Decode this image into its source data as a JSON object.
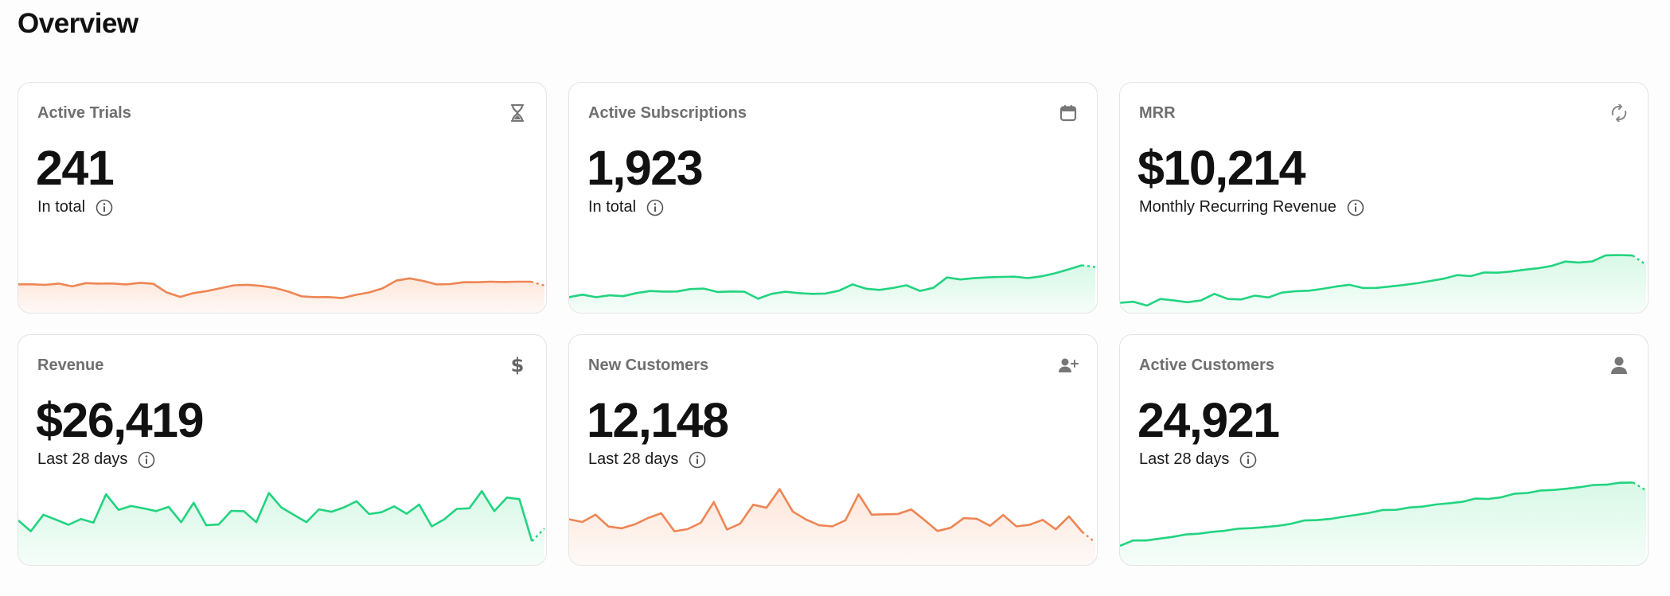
{
  "page": {
    "title": "Overview"
  },
  "colors": {
    "orange": "#ee8554",
    "green": "#22d480",
    "orange_fill": "#fde5d8",
    "green_fill": "#d6f8e6"
  },
  "cards": [
    {
      "title": "Active Trials",
      "icon": "hourglass-icon",
      "value": "241",
      "subtitle": "In total",
      "color": "orange",
      "trend": [
        26.0,
        26.0,
        25.5,
        26.6,
        24.2,
        27.0,
        26.6,
        26.7,
        25.9,
        27.3,
        26.5,
        19.0,
        15.1,
        18.4,
        20.2,
        22.7,
        25.2,
        25.6,
        24.6,
        22.9,
        19.7,
        15.6,
        14.9,
        15.0,
        14.1,
        16.8,
        19.0,
        22.5,
        29.2,
        31.2,
        29.0,
        25.9,
        26.2,
        27.8,
        27.8,
        28.3,
        28.0,
        28.3,
        28.3,
        25.0
      ]
    },
    {
      "title": "Active Subscriptions",
      "icon": "calendar-icon",
      "value": "1,923",
      "subtitle": "In total",
      "color": "green",
      "trend": [
        15.0,
        17.0,
        14.8,
        16.5,
        15.7,
        18.4,
        20.2,
        19.7,
        19.8,
        21.9,
        22.3,
        19.4,
        19.8,
        19.6,
        13.5,
        17.7,
        19.6,
        18.4,
        17.7,
        18.0,
        20.5,
        25.9,
        22.2,
        21.2,
        22.8,
        25.2,
        20.3,
        23.0,
        31.9,
        30.2,
        31.3,
        32.0,
        32.4,
        32.6,
        31.4,
        32.9,
        35.5,
        38.9,
        42.5,
        41.0
      ]
    },
    {
      "title": "MRR",
      "icon": "refresh-icon",
      "value": "$10,214",
      "subtitle": "Monthly Recurring Revenue",
      "color": "green",
      "trend": [
        10.0,
        10.9,
        7.6,
        13.3,
        12.0,
        10.5,
        12.0,
        17.7,
        13.3,
        12.9,
        16.2,
        14.6,
        18.8,
        20.0,
        20.5,
        22.1,
        24.1,
        25.6,
        22.8,
        22.9,
        24.1,
        25.4,
        26.9,
        28.9,
        30.9,
        34.0,
        33.1,
        36.3,
        36.1,
        37.1,
        38.7,
        39.9,
        42.0,
        45.7,
        44.9,
        45.8,
        51.1,
        51.4,
        51.0,
        43.0
      ]
    },
    {
      "title": "Revenue",
      "icon": "dollar-icon",
      "value": "$26,419",
      "subtitle": "Last 28 days",
      "color": "green",
      "trend": [
        40.0,
        30.6,
        44.9,
        40.6,
        36.2,
        41.2,
        38.1,
        62.7,
        49.2,
        52.5,
        50.4,
        48.1,
        51.7,
        38.4,
        55.3,
        35.8,
        36.5,
        48.3,
        48.0,
        38.4,
        63.8,
        51.2,
        44.8,
        38.5,
        49.6,
        47.5,
        51.3,
        56.6,
        45.5,
        47.1,
        52.2,
        45.8,
        53.7,
        34.8,
        41.0,
        50.0,
        50.5,
        65.4,
        48.1,
        59.8,
        58.4,
        22.0,
        33.0
      ]
    },
    {
      "title": "New Customers",
      "icon": "user-plus-icon",
      "value": "12,148",
      "subtitle": "Last 28 days",
      "color": "orange",
      "trend": [
        41.0,
        38.6,
        45.0,
        34.6,
        33.2,
        36.6,
        42.1,
        46.2,
        30.6,
        32.4,
        37.9,
        55.9,
        32.1,
        37.2,
        53.6,
        51.0,
        67.2,
        47.7,
        40.8,
        35.8,
        34.8,
        40.0,
        62.6,
        45.0,
        45.3,
        45.6,
        49.5,
        40.4,
        30.8,
        33.6,
        42.0,
        41.4,
        35.3,
        44.7,
        34.8,
        36.2,
        40.5,
        32.3,
        43.5,
        30.0,
        21.0
      ]
    },
    {
      "title": "Active Customers",
      "icon": "user-icon",
      "value": "24,921",
      "subtitle": "Last 28 days",
      "color": "green",
      "trend": [
        18.0,
        22.6,
        22.6,
        24.2,
        25.7,
        27.8,
        28.5,
        30.1,
        31.1,
        32.8,
        33.3,
        34.2,
        35.3,
        37.0,
        39.9,
        40.3,
        41.3,
        43.2,
        44.8,
        46.6,
        49.0,
        49.2,
        51.2,
        51.9,
        53.8,
        54.8,
        56.1,
        58.9,
        58.6,
        60.1,
        63.2,
        63.8,
        65.9,
        66.4,
        67.5,
        68.9,
        70.7,
        71.0,
        72.6,
        72.8,
        66.0
      ]
    }
  ]
}
